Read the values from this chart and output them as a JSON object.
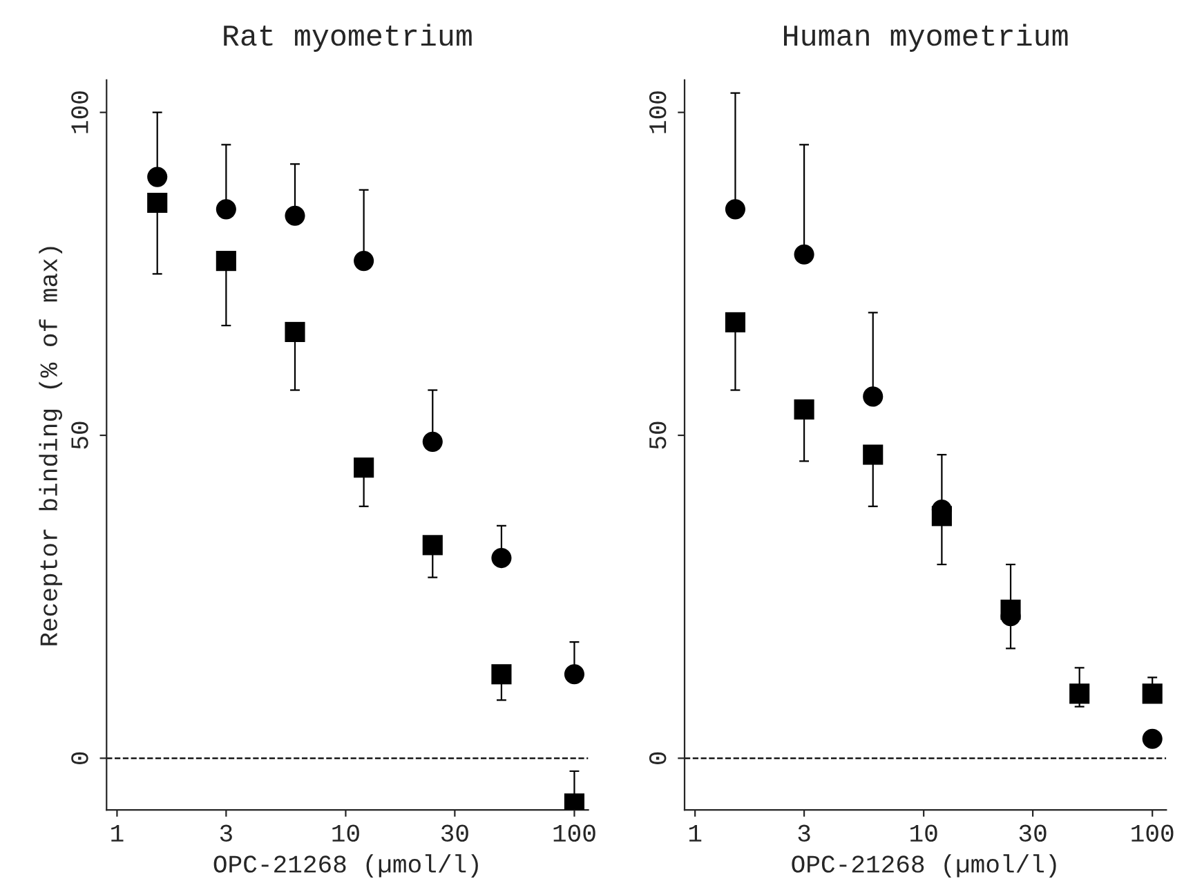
{
  "chart_data": [
    {
      "type": "scatter",
      "title": "Rat myometrium",
      "xlabel": "OPC-21268 (µmol/l)",
      "ylabel": "Receptor binding (% of max)",
      "log": "x",
      "grid": false,
      "legend": false,
      "xlim": [
        0.9,
        115
      ],
      "xticks": [
        1,
        3,
        10,
        30,
        100
      ],
      "ylim": [
        -8,
        105
      ],
      "yticks": [
        0,
        50,
        100
      ],
      "ref_lines": [
        {
          "axis": "y",
          "value": 0,
          "line_style": "dashed",
          "color": "#000000"
        }
      ],
      "series": [
        {
          "color": "#000000",
          "marker": "circle",
          "x": [
            1.5,
            3,
            6,
            12,
            24,
            48,
            100
          ],
          "values": [
            90,
            85,
            84,
            77,
            49,
            31,
            13
          ],
          "errors": [
            [
              90,
              100
            ],
            [
              85,
              95
            ],
            [
              84,
              92
            ],
            [
              77,
              88
            ],
            [
              49,
              57
            ],
            [
              31,
              36
            ],
            [
              13,
              18
            ]
          ]
        },
        {
          "color": "#000000",
          "marker": "square",
          "x": [
            1.5,
            3,
            6,
            12,
            24,
            48,
            100
          ],
          "values": [
            86,
            77,
            66,
            45,
            33,
            13,
            -7
          ],
          "errors": [
            [
              75,
              86
            ],
            [
              67,
              77
            ],
            [
              57,
              66
            ],
            [
              39,
              45
            ],
            [
              28,
              33
            ],
            [
              9,
              13
            ],
            [
              -7,
              -2
            ]
          ]
        }
      ]
    },
    {
      "type": "scatter",
      "title": "Human myometrium",
      "xlabel": "OPC-21268 (µmol/l)",
      "log": "x",
      "grid": false,
      "legend": false,
      "xlim": [
        0.9,
        115
      ],
      "xticks": [
        1,
        3,
        10,
        30,
        100
      ],
      "ylim": [
        -8,
        105
      ],
      "yticks": [
        0,
        50,
        100
      ],
      "ref_lines": [
        {
          "axis": "y",
          "value": 0,
          "line_style": "dashed",
          "color": "#000000"
        }
      ],
      "series": [
        {
          "color": "#000000",
          "marker": "circle",
          "x": [
            1.5,
            3,
            6,
            12,
            24,
            48,
            100
          ],
          "values": [
            85,
            78,
            56,
            38.5,
            22,
            null,
            3
          ],
          "errors": [
            [
              85,
              103
            ],
            [
              78,
              95
            ],
            [
              56,
              69
            ],
            [
              38.5,
              47
            ],
            [
              22,
              30
            ],
            null,
            null
          ]
        },
        {
          "color": "#000000",
          "marker": "square",
          "x": [
            1.5,
            3,
            6,
            12,
            24,
            48,
            100
          ],
          "values": [
            67.5,
            54,
            47,
            37.5,
            23,
            10,
            10
          ],
          "errors": [
            [
              57,
              67.5
            ],
            [
              46,
              54
            ],
            [
              39,
              47
            ],
            [
              30,
              37.5
            ],
            [
              17,
              23
            ],
            [
              8,
              14
            ],
            [
              10,
              12.5
            ]
          ]
        }
      ]
    }
  ]
}
